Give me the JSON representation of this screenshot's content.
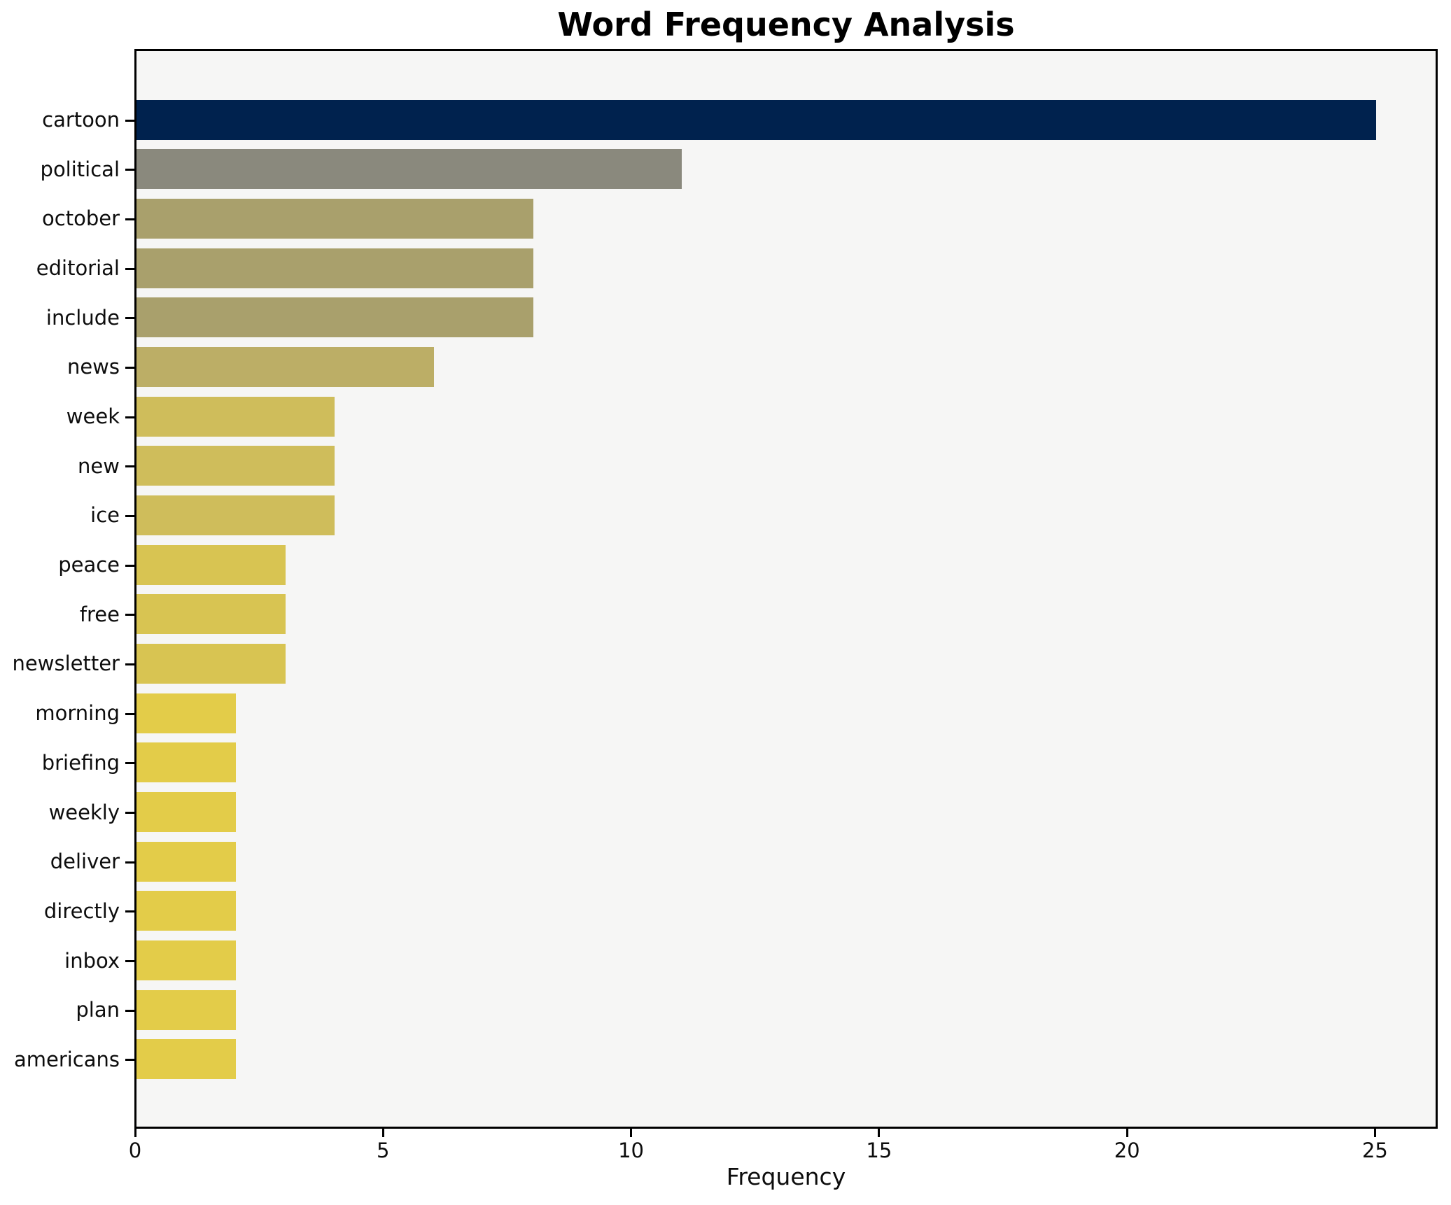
{
  "title": "Word Frequency Analysis",
  "xlabel": "Frequency",
  "chart_data": {
    "type": "bar",
    "orientation": "horizontal",
    "title": "Word Frequency Analysis",
    "xlabel": "Frequency",
    "ylabel": "",
    "categories": [
      "cartoon",
      "political",
      "october",
      "editorial",
      "include",
      "news",
      "week",
      "new",
      "ice",
      "peace",
      "free",
      "newsletter",
      "morning",
      "briefing",
      "weekly",
      "deliver",
      "directly",
      "inbox",
      "plan",
      "americans"
    ],
    "values": [
      25,
      11,
      8,
      8,
      8,
      6,
      4,
      4,
      4,
      3,
      3,
      3,
      2,
      2,
      2,
      2,
      2,
      2,
      2,
      2
    ],
    "bar_colors": [
      "#00224e",
      "#8a897d",
      "#a9a06c",
      "#a9a06c",
      "#a9a06c",
      "#bcae66",
      "#cfbd5b",
      "#cfbd5b",
      "#cfbd5b",
      "#d8c452",
      "#d8c452",
      "#d8c452",
      "#e3cc49",
      "#e3cc49",
      "#e3cc49",
      "#e3cc49",
      "#e3cc49",
      "#e3cc49",
      "#e3cc49",
      "#e3cc49"
    ],
    "x_ticks": [
      0,
      5,
      10,
      15,
      20,
      25
    ],
    "xlim": [
      0,
      26.25
    ],
    "grid": false,
    "legend": "none",
    "plot_background": "#f6f6f5",
    "figure_background": "#ffffff",
    "spine_color": "#000000",
    "colormap_note": "cividis colormap scaled by value: high=dark navy, low=yellow"
  }
}
